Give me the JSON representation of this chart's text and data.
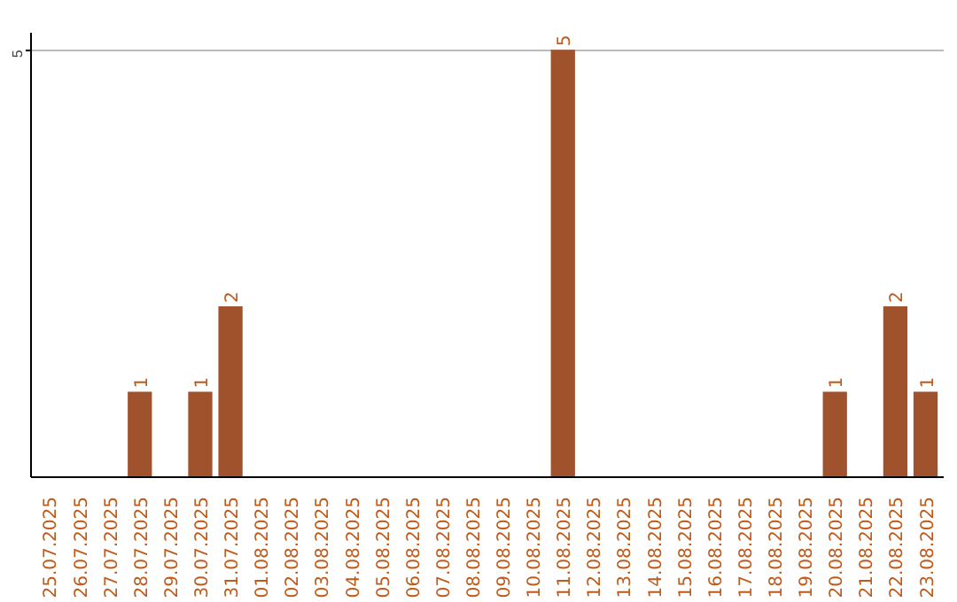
{
  "chart_data": {
    "type": "bar",
    "categories": [
      "25.07.2025",
      "26.07.2025",
      "27.07.2025",
      "28.07.2025",
      "29.07.2025",
      "30.07.2025",
      "31.07.2025",
      "01.08.2025",
      "02.08.2025",
      "03.08.2025",
      "04.08.2025",
      "05.08.2025",
      "06.08.2025",
      "07.08.2025",
      "08.08.2025",
      "09.08.2025",
      "10.08.2025",
      "11.08.2025",
      "12.08.2025",
      "13.08.2025",
      "14.08.2025",
      "15.08.2025",
      "16.08.2025",
      "17.08.2025",
      "18.08.2025",
      "19.08.2025",
      "20.08.2025",
      "21.08.2025",
      "22.08.2025",
      "23.08.2025"
    ],
    "values": [
      0,
      0,
      0,
      1,
      0,
      1,
      2,
      0,
      0,
      0,
      0,
      0,
      0,
      0,
      0,
      0,
      0,
      5,
      0,
      0,
      0,
      0,
      0,
      0,
      0,
      0,
      1,
      0,
      2,
      1
    ],
    "value_labels": [
      null,
      null,
      null,
      "1",
      null,
      "1",
      "2",
      null,
      null,
      null,
      null,
      null,
      null,
      null,
      null,
      null,
      null,
      "5",
      null,
      null,
      null,
      null,
      null,
      null,
      null,
      null,
      "1",
      null,
      "2",
      "1"
    ],
    "color": "#a0522d",
    "ylim": [
      0,
      5.2
    ],
    "yticks": [
      5
    ],
    "grid": "y"
  }
}
